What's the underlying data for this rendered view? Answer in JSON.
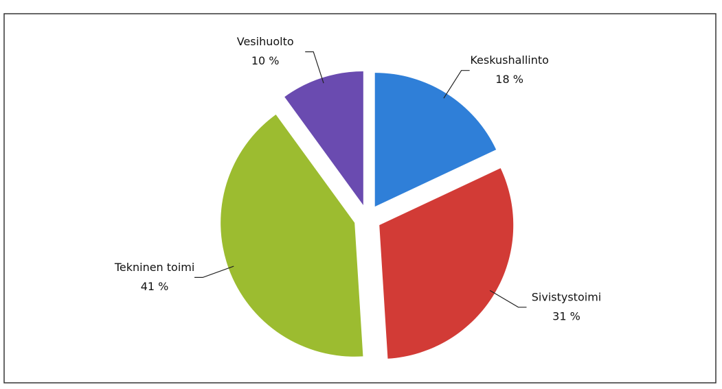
{
  "chart_data": {
    "type": "pie",
    "categories": [
      "Keskushallinto",
      "Sivistystoimi",
      "Tekninen toimi",
      "Vesihuolto"
    ],
    "values": [
      18,
      31,
      41,
      10
    ],
    "value_labels": [
      "18 %",
      "31 %",
      "41 %",
      "10 %"
    ],
    "colors": [
      "#2f7fd8",
      "#d23b36",
      "#9cbc30",
      "#6a4bb0"
    ]
  }
}
